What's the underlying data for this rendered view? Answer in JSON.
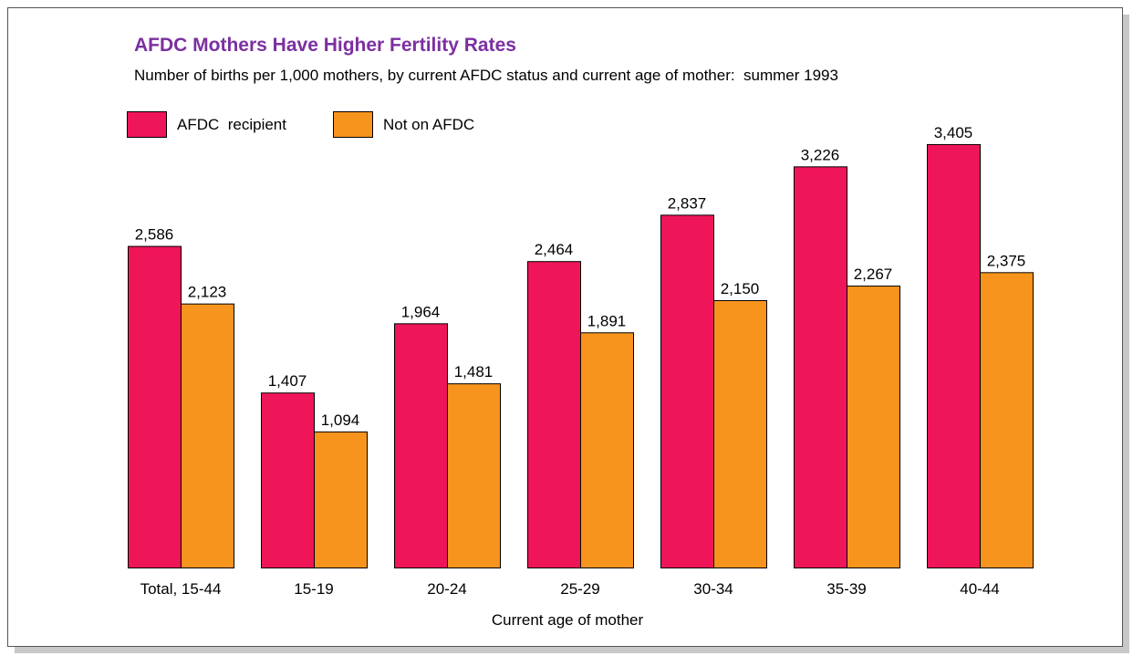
{
  "chart_data": {
    "type": "bar",
    "title": "AFDC Mothers Have Higher Fertility Rates",
    "subtitle": "Number of births per 1,000 mothers, by current AFDC status and current age of mother:  summer 1993",
    "x_label": "Current age of mother",
    "categories": [
      "Total, 15-44",
      "15-19",
      "20-24",
      "25-29",
      "30-34",
      "35-39",
      "40-44"
    ],
    "series": [
      {
        "name": "AFDC  recipient",
        "color": "#ee1558",
        "values": [
          2586,
          1407,
          1964,
          2464,
          2837,
          3226,
          3405
        ],
        "value_labels": [
          "2,586",
          "1,407",
          "1,964",
          "2,464",
          "2,837",
          "3,226",
          "3,405"
        ]
      },
      {
        "name": "Not on AFDC",
        "color": "#f7941e",
        "values": [
          2123,
          1094,
          1481,
          1891,
          2150,
          2267,
          2375
        ],
        "value_labels": [
          "2,123",
          "1,094",
          "1,481",
          "1,891",
          "2,150",
          "2,267",
          "2,375"
        ]
      }
    ],
    "ylim": [
      0,
      3500
    ],
    "legend": "top-left"
  }
}
